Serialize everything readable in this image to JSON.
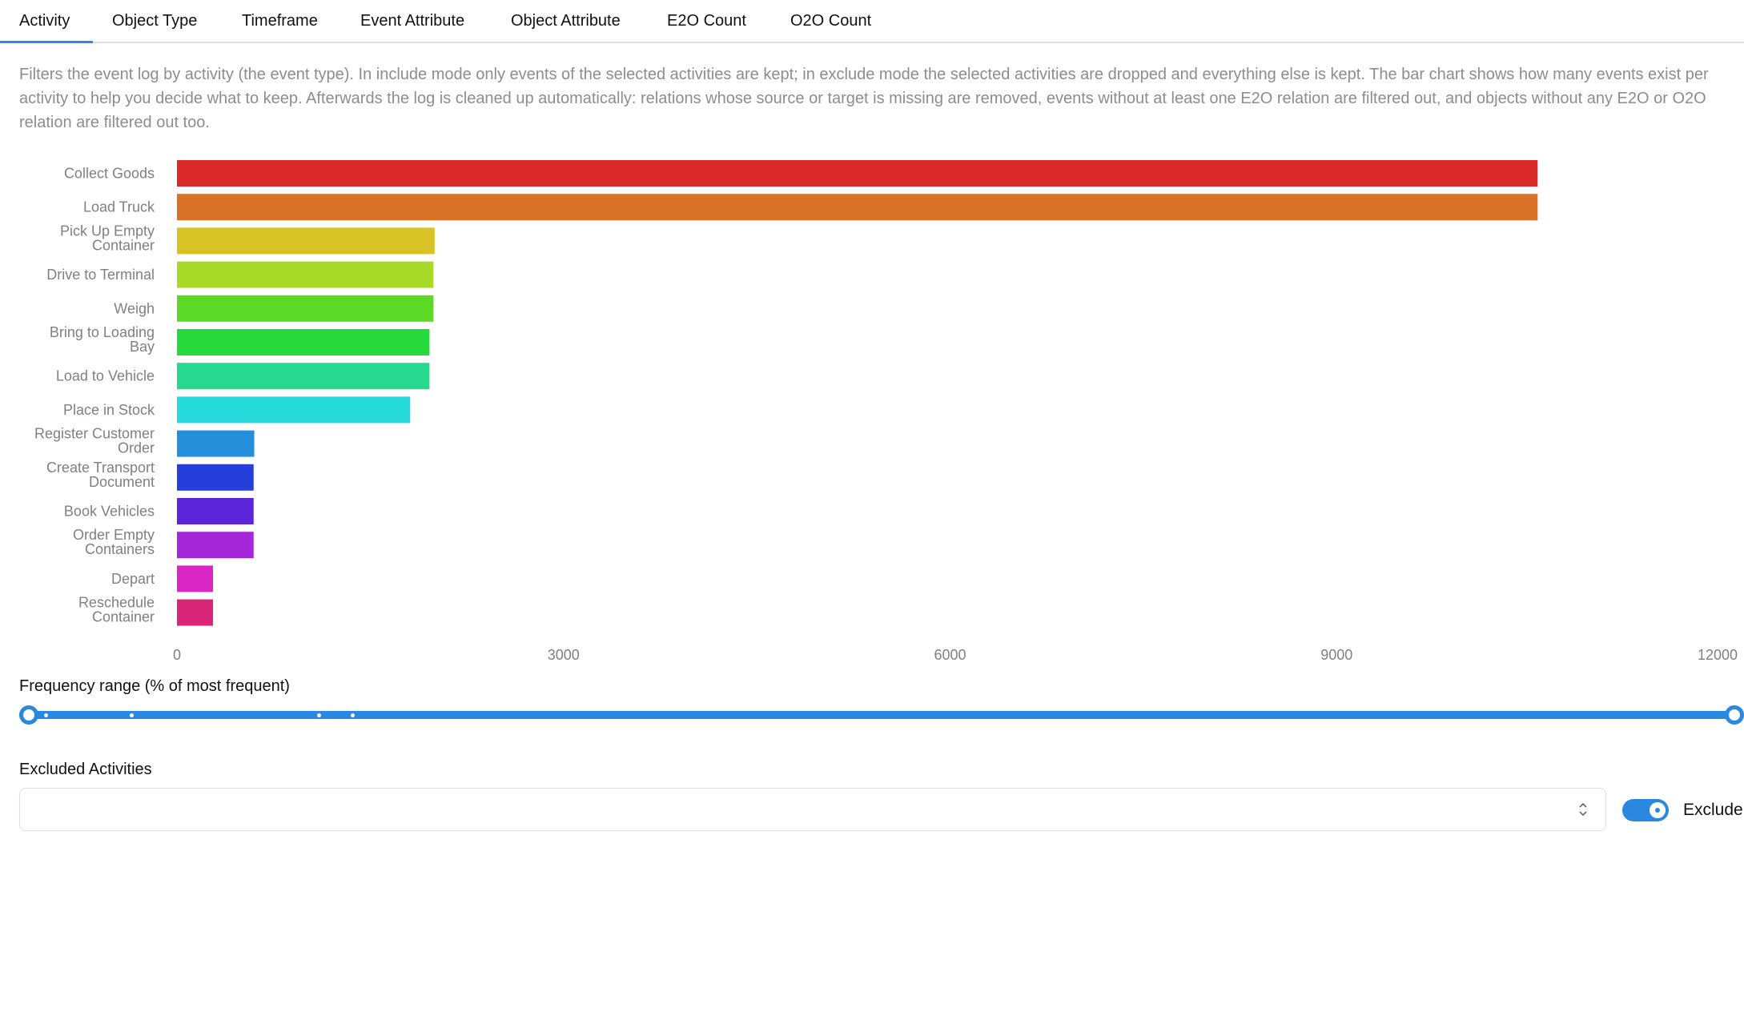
{
  "tabs": [
    {
      "label": "Activity",
      "active": true
    },
    {
      "label": "Object Type",
      "active": false
    },
    {
      "label": "Timeframe",
      "active": false
    },
    {
      "label": "Event Attribute",
      "active": false
    },
    {
      "label": "Object Attribute",
      "active": false
    },
    {
      "label": "E2O Count",
      "active": false
    },
    {
      "label": "O2O Count",
      "active": false
    }
  ],
  "description": "Filters the event log by activity (the event type). In include mode only events of the selected activities are kept; in exclude mode the selected activities are dropped and everything else is kept. The bar chart shows how many events exist per activity to help you decide what to keep. Afterwards the log is cleaned up automatically: relations whose source or target is missing are removed, events without at least one E2O relation are filtered out, and objects without any E2O or O2O relation are filtered out too.",
  "chart_data": {
    "type": "bar",
    "orientation": "horizontal",
    "categories": [
      "Collect Goods",
      "Load Truck",
      "Pick Up Empty Container",
      "Drive to Terminal",
      "Weigh",
      "Bring to Loading Bay",
      "Load to Vehicle",
      "Place in Stock",
      "Register Customer Order",
      "Create Transport Document",
      "Book Vehicles",
      "Order Empty Containers",
      "Depart",
      "Reschedule Container"
    ],
    "values": [
      10560,
      10560,
      2000,
      1990,
      1990,
      1960,
      1960,
      1810,
      600,
      595,
      595,
      595,
      280,
      280
    ],
    "colors": [
      "#dc2a2a",
      "#d97126",
      "#d9c226",
      "#a6da26",
      "#5bd926",
      "#26d93d",
      "#26d98e",
      "#26dadb",
      "#268fdb",
      "#263fdb",
      "#5b26d9",
      "#a626d9",
      "#d926c4",
      "#d92678"
    ],
    "xticks": [
      "0",
      "3000",
      "6000",
      "9000",
      "12000"
    ],
    "xlim": [
      0,
      12000
    ],
    "grid": false,
    "legend": "none"
  },
  "frequency": {
    "label": "Frequency range (% of most frequent)",
    "range_min": 0,
    "range_max": 100
  },
  "excluded": {
    "label": "Excluded Activities",
    "value": "",
    "mode_label": "Exclude",
    "mode_on": true
  }
}
